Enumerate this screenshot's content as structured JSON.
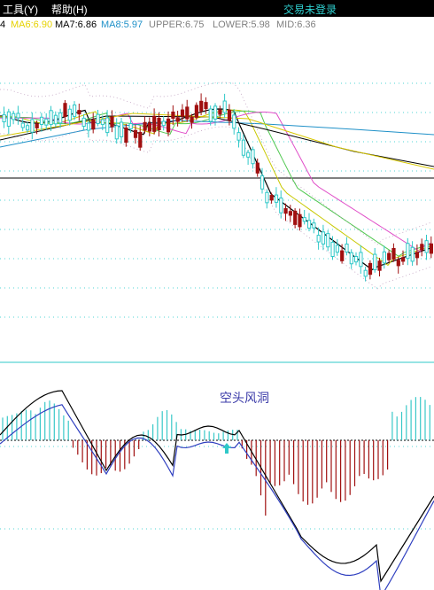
{
  "menubar": {
    "items": [
      {
        "label": "工具",
        "hotkey": "(Y)"
      },
      {
        "label": "帮助",
        "hotkey": "(H)"
      }
    ],
    "login_status": "交易未登录"
  },
  "indicator_legend": {
    "items": [
      {
        "text": "4",
        "color": "#000000"
      },
      {
        "text": "MA6:6.90",
        "color": "#e6d200"
      },
      {
        "text": "MA7:6.86",
        "color": "#000000"
      },
      {
        "text": "MA8:5.97",
        "color": "#1e90c8"
      },
      {
        "text": "UPPER:6.75",
        "color": "#808080"
      },
      {
        "text": "LOWER:5.98",
        "color": "#808080"
      },
      {
        "text": "MID:6.36",
        "color": "#808080"
      }
    ]
  },
  "macd_panel": {
    "annotation": "空头风洞",
    "annotation_color": "#3a3aa8",
    "marker": "up-arrow-icon"
  },
  "colors": {
    "up_candle": "#2fc8c8",
    "down_candle": "#a01010",
    "ma5": "#000000",
    "ma10": "#c8c800",
    "ma20": "#50c850",
    "ma30": "#e04ec8",
    "ma60": "#1e90c8",
    "grid": "#4fd4d4",
    "macd_pos": "#38c8c8",
    "macd_neg": "#a01010",
    "dif": "#000000",
    "dea": "#3040c0"
  }
}
